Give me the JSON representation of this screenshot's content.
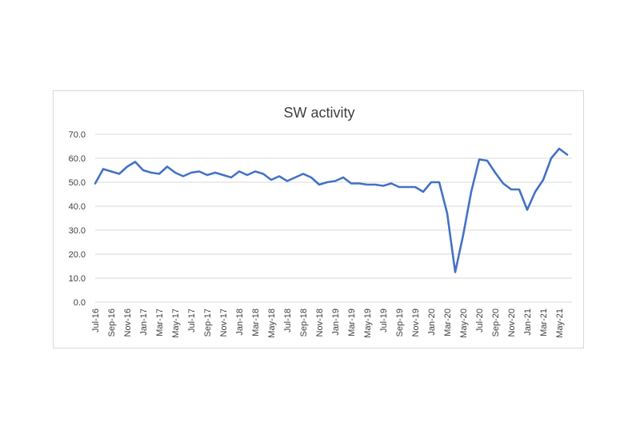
{
  "chart_data": {
    "type": "line",
    "title": "SW activity",
    "xlabel": "",
    "ylabel": "",
    "ylim": [
      0,
      70
    ],
    "yticks": [
      "0.0",
      "10.0",
      "20.0",
      "30.0",
      "40.0",
      "50.0",
      "60.0",
      "70.0"
    ],
    "grid": true,
    "legend": "none",
    "line_color": "#4472c4",
    "grid_color": "#d9d9d9",
    "x_tick_labels": [
      "Jul-16",
      "Sep-16",
      "Nov-16",
      "Jan-17",
      "Mar-17",
      "May-17",
      "Jul-17",
      "Sep-17",
      "Nov-17",
      "Jan-18",
      "Mar-18",
      "May-18",
      "Jul-18",
      "Sep-18",
      "Nov-18",
      "Jan-19",
      "Mar-19",
      "May-19",
      "Jul-19",
      "Sep-19",
      "Nov-19",
      "Jan-20",
      "Mar-20",
      "May-20",
      "Jul-20",
      "Sep-20",
      "Nov-20",
      "Jan-21",
      "Mar-21",
      "May-21"
    ],
    "x": [
      "Jul-16",
      "Aug-16",
      "Sep-16",
      "Oct-16",
      "Nov-16",
      "Dec-16",
      "Jan-17",
      "Feb-17",
      "Mar-17",
      "Apr-17",
      "May-17",
      "Jun-17",
      "Jul-17",
      "Aug-17",
      "Sep-17",
      "Oct-17",
      "Nov-17",
      "Dec-17",
      "Jan-18",
      "Feb-18",
      "Mar-18",
      "Apr-18",
      "May-18",
      "Jun-18",
      "Jul-18",
      "Aug-18",
      "Sep-18",
      "Oct-18",
      "Nov-18",
      "Dec-18",
      "Jan-19",
      "Feb-19",
      "Mar-19",
      "Apr-19",
      "May-19",
      "Jun-19",
      "Jul-19",
      "Aug-19",
      "Sep-19",
      "Oct-19",
      "Nov-19",
      "Dec-19",
      "Jan-20",
      "Feb-20",
      "Mar-20",
      "Apr-20",
      "May-20",
      "Jun-20",
      "Jul-20",
      "Aug-20",
      "Sep-20",
      "Oct-20",
      "Nov-20",
      "Dec-20",
      "Jan-21",
      "Feb-21",
      "Mar-21",
      "Apr-21",
      "May-21",
      "Jun-21"
    ],
    "series": [
      {
        "values": [
          49.5,
          55.5,
          54.5,
          53.5,
          56.5,
          58.5,
          55.0,
          54.0,
          53.5,
          56.5,
          54.0,
          52.5,
          54.0,
          54.5,
          53.0,
          54.0,
          53.0,
          52.0,
          54.5,
          53.0,
          54.5,
          53.5,
          51.0,
          52.5,
          50.5,
          52.0,
          53.5,
          52.0,
          49.0,
          50.0,
          50.5,
          52.0,
          49.5,
          49.5,
          49.0,
          49.0,
          48.5,
          49.5,
          48.0,
          48.0,
          48.0,
          46.0,
          50.0,
          50.0,
          37.0,
          12.5,
          28.0,
          46.0,
          59.5,
          59.0,
          54.0,
          49.5,
          47.0,
          47.0,
          38.5,
          46.0,
          51.0,
          60.0,
          64.0,
          61.5
        ]
      }
    ]
  }
}
